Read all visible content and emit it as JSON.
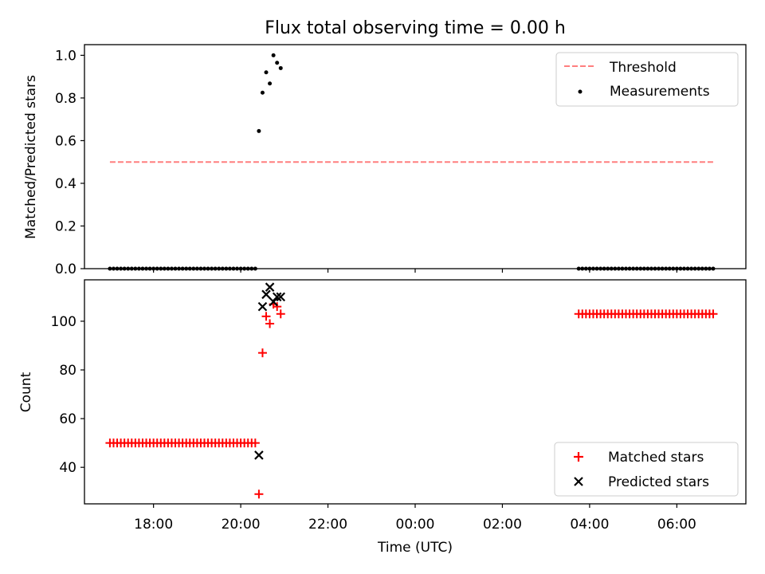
{
  "chart_data": [
    {
      "type": "scatter",
      "title": "Flux total observing time = 0.00 h",
      "ylabel": "Matched/Predicted stars",
      "xlabel": "",
      "x_is_time": true,
      "xticks": [
        "18:00",
        "20:00",
        "22:00",
        "00:00",
        "02:00",
        "04:00",
        "06:00"
      ],
      "ylim": [
        0,
        1.05
      ],
      "yticks": [
        "0.0",
        "0.2",
        "0.4",
        "0.6",
        "0.8",
        "1.0"
      ],
      "legend_position": "top-right",
      "series": [
        {
          "name": "Threshold",
          "style": "dashed-line",
          "color": "#ff7f7f",
          "x": [
            "17:00",
            "06:50"
          ],
          "y": [
            0.5,
            0.5
          ]
        },
        {
          "name": "Measurements",
          "style": "dot",
          "color": "#000000",
          "x_ranges": [
            {
              "from": "17:00",
              "to": "20:20",
              "step_min": 5,
              "y": 0
            },
            {
              "from": "03:45",
              "to": "06:50",
              "step_min": 5,
              "y": 0
            }
          ],
          "points": [
            {
              "x": "20:25",
              "y": 0.645
            },
            {
              "x": "20:30",
              "y": 0.825
            },
            {
              "x": "20:35",
              "y": 0.92
            },
            {
              "x": "20:40",
              "y": 0.868
            },
            {
              "x": "20:45",
              "y": 1.0
            },
            {
              "x": "20:50",
              "y": 0.965
            },
            {
              "x": "20:55",
              "y": 0.94
            }
          ]
        }
      ]
    },
    {
      "type": "scatter",
      "title": "",
      "ylabel": "Count",
      "xlabel": "Time (UTC)",
      "x_is_time": true,
      "xticks": [
        "18:00",
        "20:00",
        "22:00",
        "00:00",
        "02:00",
        "04:00",
        "06:00"
      ],
      "ylim": [
        25,
        117
      ],
      "yticks": [
        "40",
        "60",
        "80",
        "100"
      ],
      "legend_position": "bottom-right",
      "series": [
        {
          "name": "Matched stars",
          "marker": "plus",
          "color": "#ff0000",
          "x_ranges": [
            {
              "from": "17:00",
              "to": "20:20",
              "step_min": 5,
              "y": 50
            },
            {
              "from": "03:45",
              "to": "06:50",
              "step_min": 5,
              "y": 103
            }
          ],
          "points": [
            {
              "x": "20:25",
              "y": 29
            },
            {
              "x": "20:30",
              "y": 87
            },
            {
              "x": "20:35",
              "y": 102
            },
            {
              "x": "20:40",
              "y": 99
            },
            {
              "x": "20:45",
              "y": 107
            },
            {
              "x": "20:50",
              "y": 106
            },
            {
              "x": "20:55",
              "y": 103
            }
          ]
        },
        {
          "name": "Predicted stars",
          "marker": "x",
          "color": "#000000",
          "points": [
            {
              "x": "20:25",
              "y": 45
            },
            {
              "x": "20:30",
              "y": 106
            },
            {
              "x": "20:35",
              "y": 111
            },
            {
              "x": "20:40",
              "y": 114
            },
            {
              "x": "20:45",
              "y": 108
            },
            {
              "x": "20:50",
              "y": 110
            },
            {
              "x": "20:55",
              "y": 110
            }
          ]
        }
      ]
    }
  ]
}
